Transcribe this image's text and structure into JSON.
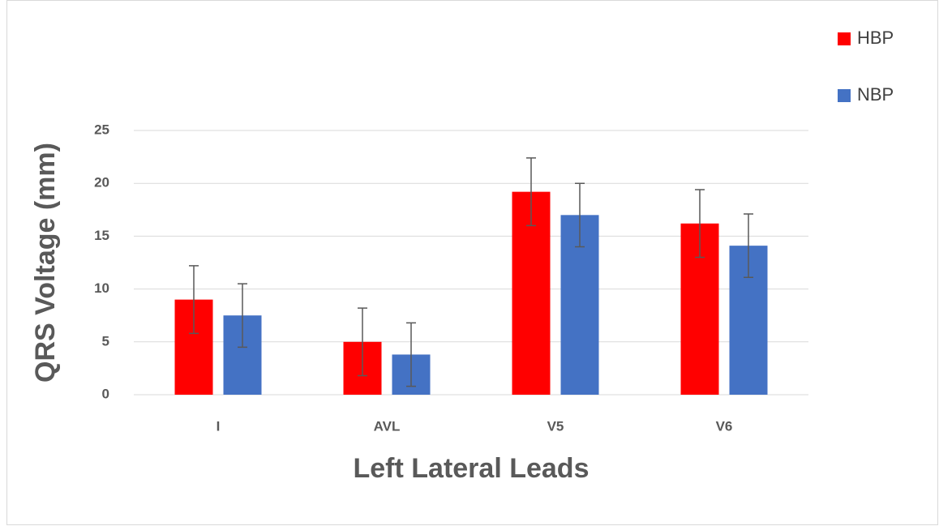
{
  "chart_data": {
    "type": "bar",
    "xlabel": "Left Lateral Leads",
    "ylabel": "QRS Voltage (mm)",
    "categories": [
      "I",
      "AVL",
      "V5",
      "V6"
    ],
    "series": [
      {
        "name": "HBP",
        "color": "#ff0000",
        "values": [
          9.0,
          5.0,
          19.2,
          16.2
        ],
        "errors": [
          3.2,
          3.2,
          3.2,
          3.2
        ]
      },
      {
        "name": "NBP",
        "color": "#4472c4",
        "values": [
          7.5,
          3.8,
          17.0,
          14.1
        ],
        "errors": [
          3.0,
          3.0,
          3.0,
          3.0
        ]
      }
    ],
    "ylim": [
      0,
      25
    ],
    "yticks": [
      0,
      5,
      10,
      15,
      20,
      25
    ],
    "grid": true,
    "legend": "top-right"
  }
}
